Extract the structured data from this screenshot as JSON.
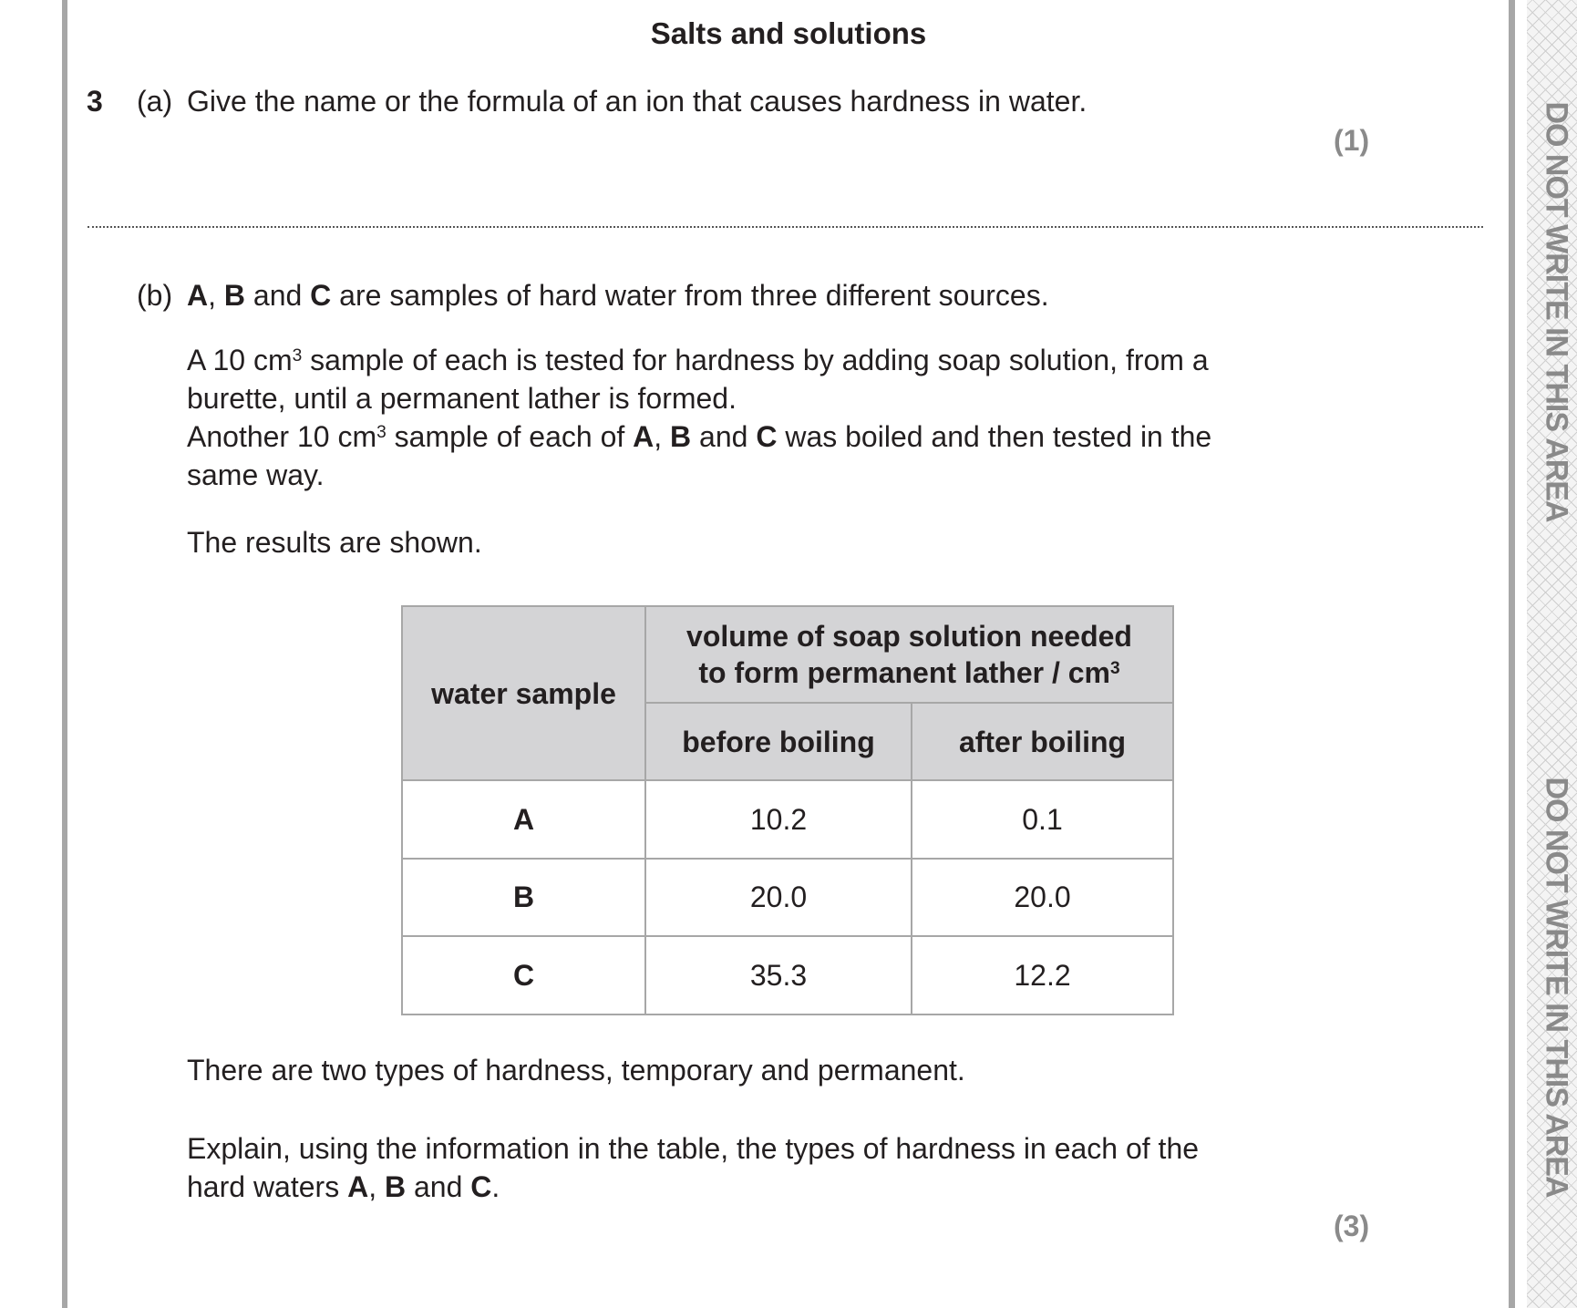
{
  "page": {
    "title": "Salts and solutions",
    "margin_notice": "DO NOT WRITE IN THIS AREA"
  },
  "question": {
    "number": "3",
    "a": {
      "label": "(a)",
      "text": "Give the name or the formula of an ion that causes hardness in water.",
      "marks": "(1)"
    },
    "b": {
      "label": "(b)",
      "intro_A": "A",
      "intro_B": "B",
      "intro_C": "C",
      "intro_rest": "are samples of hard water from three different sources.",
      "para1_line1_pre": "A 10 cm",
      "para1_sup": "3",
      "para1_line1_post": " sample of each is tested for hardness by adding soap solution, from a",
      "para1_line2": "burette, until a permanent lather is formed.",
      "para1_line3_pre": "Another 10 cm",
      "para1_line3_mid": " sample of each of ",
      "para1_line3_post": " was boiled and then tested in the",
      "para1_line4": "same way.",
      "results": "The results are shown.",
      "types": "There are two types of hardness, temporary and permanent.",
      "explain_line1": "Explain, using the information in the table, the types of hardness in each of the",
      "explain_line2_pre": "hard waters ",
      "marks": "(3)"
    }
  },
  "table": {
    "col1_header": "water sample",
    "group_header_line1": "volume of soap solution needed",
    "group_header_line2": "to form permanent lather / cm",
    "group_header_sup": "3",
    "sub_headers": [
      "before boiling",
      "after boiling"
    ],
    "rows": [
      {
        "sample": "A",
        "before": "10.2",
        "after": "0.1"
      },
      {
        "sample": "B",
        "before": "20.0",
        "after": "20.0"
      },
      {
        "sample": "C",
        "before": "35.3",
        "after": "12.2"
      }
    ]
  },
  "words": {
    "and": " and ",
    "comma": ", ",
    "period": "."
  }
}
